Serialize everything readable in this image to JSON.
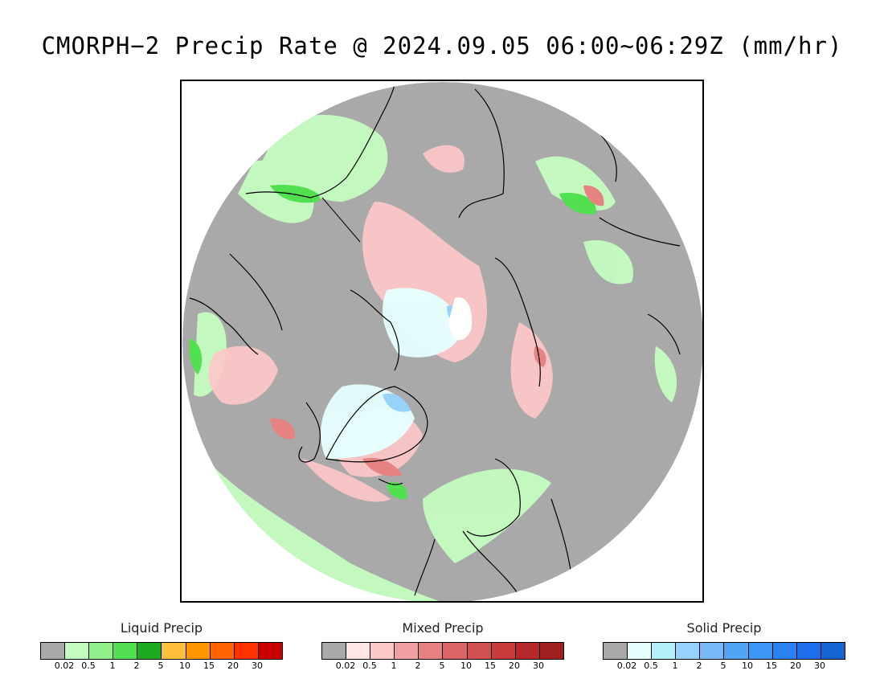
{
  "title": "CMORPH−2 Precip Rate @ 2024.09.05 06:00~06:29Z (mm/hr)",
  "map": {
    "projection": "north-polar-stereographic",
    "background_color": "#a9a9a9",
    "coastline_color": "#000000"
  },
  "legends": [
    {
      "title": "Liquid Precip",
      "colors": [
        "#a9a9a9",
        "#c4fcc0",
        "#8ff08b",
        "#50e050",
        "#1eaa1e",
        "#ffbe3c",
        "#ff9600",
        "#ff6400",
        "#ff3200",
        "#c80000"
      ],
      "ticks": [
        "0.02",
        "0.5",
        "1",
        "2",
        "5",
        "10",
        "15",
        "20",
        "30"
      ]
    },
    {
      "title": "Mixed Precip",
      "colors": [
        "#a9a9a9",
        "#ffe6e6",
        "#ffc8c8",
        "#f0a0a0",
        "#e68282",
        "#dc6464",
        "#d25050",
        "#c83c3c",
        "#b42828",
        "#a01e1e"
      ],
      "ticks": [
        "0.02",
        "0.5",
        "1",
        "2",
        "5",
        "10",
        "15",
        "20",
        "30"
      ]
    },
    {
      "title": "Solid Precip",
      "colors": [
        "#a9a9a9",
        "#e6ffff",
        "#b4f0fa",
        "#96d2fa",
        "#78b9fa",
        "#50a5f5",
        "#3c96f5",
        "#2882f0",
        "#1e6eeb",
        "#1464d2"
      ],
      "ticks": [
        "0.02",
        "0.5",
        "1",
        "2",
        "5",
        "10",
        "15",
        "20",
        "30"
      ]
    }
  ]
}
